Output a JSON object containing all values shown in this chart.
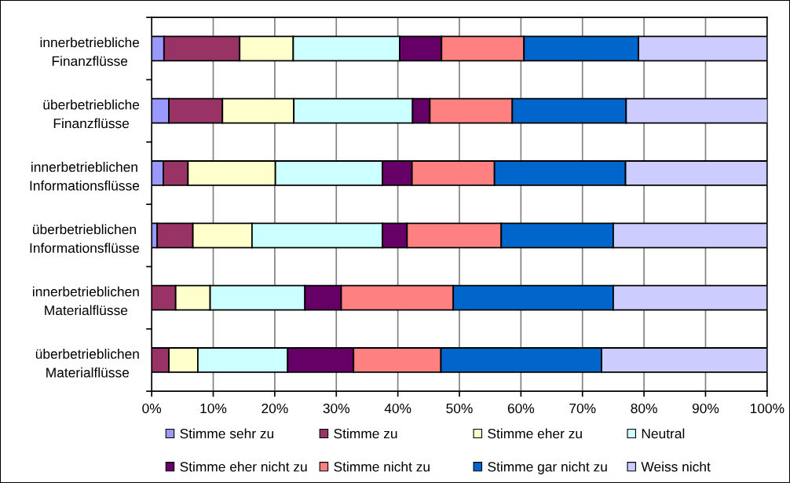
{
  "chart_data": {
    "type": "bar",
    "orientation": "horizontal",
    "stacked": true,
    "categories": [
      "innerbetriebliche\nFinanzflüsse",
      "überbetriebliche\nFinanzflüsse",
      "innerbetrieblichen\nInformationsflüsse",
      "überbetrieblichen\nInformationsflüsse",
      "innerbetrieblichen\nMaterialflüsse",
      "überbetrieblichen\nMaterialflüsse"
    ],
    "series": [
      {
        "name": "Stimme sehr zu",
        "color": "#9999ff",
        "values": [
          2.0,
          2.8,
          1.9,
          0.9,
          0,
          0
        ]
      },
      {
        "name": "Stimme zu",
        "color": "#993366",
        "values": [
          12.3,
          8.7,
          4.0,
          5.8,
          3.9,
          2.8
        ]
      },
      {
        "name": "Stimme eher zu",
        "color": "#ffffcc",
        "values": [
          8.7,
          11.6,
          14.2,
          9.6,
          5.6,
          4.7
        ]
      },
      {
        "name": "Neutral",
        "color": "#ccffff",
        "values": [
          17.3,
          19.3,
          17.4,
          21.2,
          15.4,
          14.6
        ]
      },
      {
        "name": "Stimme eher nicht zu",
        "color": "#660066",
        "values": [
          6.8,
          2.8,
          4.8,
          4.0,
          5.9,
          10.7
        ]
      },
      {
        "name": "Stimme nicht zu",
        "color": "#ff8080",
        "values": [
          13.4,
          13.4,
          13.4,
          15.3,
          18.2,
          14.2
        ]
      },
      {
        "name": "Stimme gar nicht zu",
        "color": "#0066cc",
        "values": [
          18.6,
          18.5,
          21.3,
          18.2,
          26.0,
          26.1
        ]
      },
      {
        "name": "Weiss nicht",
        "color": "#ccccff",
        "values": [
          20.9,
          23.0,
          23.0,
          25.0,
          25.0,
          26.9
        ]
      }
    ],
    "xlim": [
      0,
      100
    ],
    "xticks": [
      {
        "value": 0,
        "label": "0%"
      },
      {
        "value": 10,
        "label": "10%"
      },
      {
        "value": 20,
        "label": "20%"
      },
      {
        "value": 30,
        "label": "30%"
      },
      {
        "value": 40,
        "label": "40%"
      },
      {
        "value": 50,
        "label": "50%"
      },
      {
        "value": 60,
        "label": "60%"
      },
      {
        "value": 70,
        "label": "70%"
      },
      {
        "value": 80,
        "label": "80%"
      },
      {
        "value": 90,
        "label": "90%"
      },
      {
        "value": 100,
        "label": "100%"
      }
    ],
    "grid": "x",
    "legend": "bottom"
  }
}
